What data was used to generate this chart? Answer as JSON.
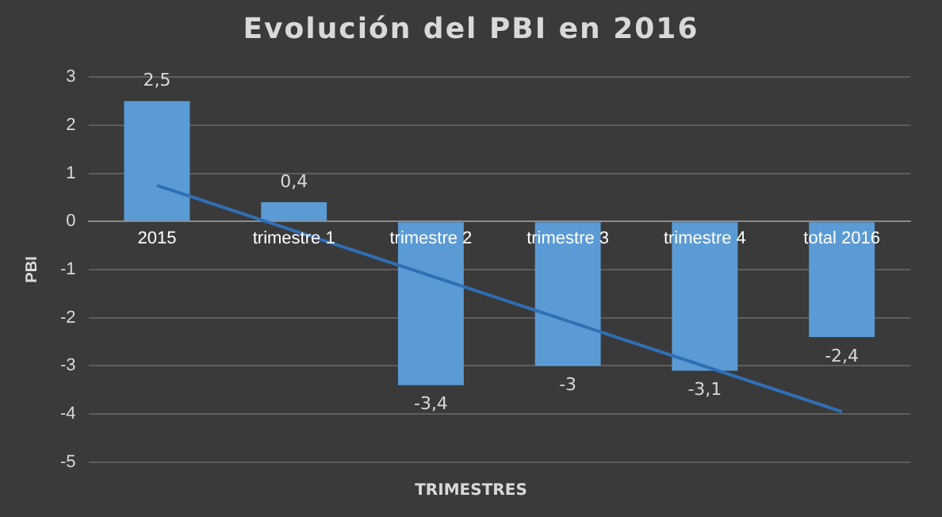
{
  "chart_data": {
    "type": "bar",
    "title": "Evolución del PBI en 2016",
    "xlabel": "TRIMESTRES",
    "ylabel": "PBI",
    "categories": [
      "2015",
      "trimestre 1",
      "trimestre 2",
      "trimestre 3",
      "trimestre 4",
      "total 2016"
    ],
    "series": [
      {
        "color": "#5b9bd5",
        "values": [
          2.5,
          0.4,
          -3.4,
          -3,
          -3.1,
          -2.4
        ],
        "value_labels": [
          "2,5",
          "0,4",
          "-3,4",
          "-3",
          "-3,1",
          "-2,4"
        ]
      },
      {
        "type": "line",
        "color": "#2f6fb5",
        "values": [
          0.75,
          -0.19,
          -1.13,
          -2.07,
          -3.01,
          -3.95
        ]
      }
    ],
    "ylim": [
      -5,
      3
    ],
    "yticks": [
      -5,
      -4,
      -3,
      -2,
      -1,
      0,
      1,
      2,
      3
    ],
    "grid": "y",
    "legend": false,
    "marker": "none"
  }
}
